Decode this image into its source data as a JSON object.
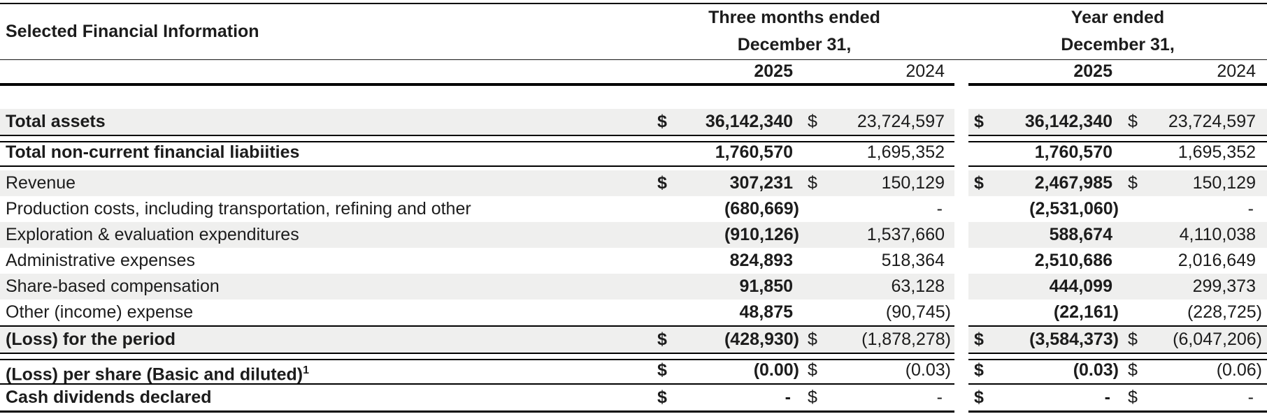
{
  "table": {
    "title": "Selected Financial Information",
    "col_groups": [
      {
        "period_line1": "Three months ended",
        "period_line2": "December 31,",
        "years": [
          "2025",
          "2024"
        ]
      },
      {
        "period_line1": "Year ended",
        "period_line2": "December 31,",
        "years": [
          "2025",
          "2024"
        ]
      }
    ],
    "shading_color": "#efefee",
    "rows": [
      {
        "label": "Total assets",
        "bold_label": true,
        "shaded": true,
        "rule_below": "double",
        "cells": [
          {
            "cur": "$",
            "val": "36,142,340"
          },
          {
            "cur": "$",
            "val": "23,724,597"
          },
          {
            "cur": "$",
            "val": "36,142,340"
          },
          {
            "cur": "$",
            "val": "23,724,597"
          }
        ]
      },
      {
        "label": "Total non-current financial liabiities",
        "bold_label": true,
        "shaded": false,
        "rule_below": "double",
        "cells": [
          {
            "cur": "",
            "val": "1,760,570"
          },
          {
            "cur": "",
            "val": "1,695,352"
          },
          {
            "cur": "",
            "val": "1,760,570"
          },
          {
            "cur": "",
            "val": "1,695,352"
          }
        ]
      },
      {
        "label": "Revenue",
        "bold_label": false,
        "shaded": true,
        "rule_below": null,
        "cells": [
          {
            "cur": "$",
            "val": "307,231"
          },
          {
            "cur": "$",
            "val": "150,129"
          },
          {
            "cur": "$",
            "val": "2,467,985"
          },
          {
            "cur": "$",
            "val": "150,129"
          }
        ]
      },
      {
        "label": "Production costs, including transportation, refining and other",
        "bold_label": false,
        "shaded": false,
        "rule_below": null,
        "cells": [
          {
            "cur": "",
            "val": "(680,669)"
          },
          {
            "cur": "",
            "val": "-"
          },
          {
            "cur": "",
            "val": "(2,531,060)"
          },
          {
            "cur": "",
            "val": "-"
          }
        ]
      },
      {
        "label": "Exploration & evaluation expenditures",
        "bold_label": false,
        "shaded": true,
        "rule_below": null,
        "cells": [
          {
            "cur": "",
            "val": "(910,126)"
          },
          {
            "cur": "",
            "val": "1,537,660"
          },
          {
            "cur": "",
            "val": "588,674"
          },
          {
            "cur": "",
            "val": "4,110,038"
          }
        ]
      },
      {
        "label": "Administrative expenses",
        "bold_label": false,
        "shaded": false,
        "rule_below": null,
        "cells": [
          {
            "cur": "",
            "val": "824,893"
          },
          {
            "cur": "",
            "val": "518,364"
          },
          {
            "cur": "",
            "val": "2,510,686"
          },
          {
            "cur": "",
            "val": "2,016,649"
          }
        ]
      },
      {
        "label": "Share-based compensation",
        "bold_label": false,
        "shaded": true,
        "rule_below": null,
        "cells": [
          {
            "cur": "",
            "val": "91,850"
          },
          {
            "cur": "",
            "val": "63,128"
          },
          {
            "cur": "",
            "val": "444,099"
          },
          {
            "cur": "",
            "val": "299,373"
          }
        ]
      },
      {
        "label": "Other (income) expense",
        "bold_label": false,
        "shaded": false,
        "rule_below": "single",
        "cells": [
          {
            "cur": "",
            "val": "48,875"
          },
          {
            "cur": "",
            "val": "(90,745)"
          },
          {
            "cur": "",
            "val": "(22,161)"
          },
          {
            "cur": "",
            "val": "(228,725)"
          }
        ]
      },
      {
        "label": "(Loss) for the period",
        "bold_label": true,
        "shaded": true,
        "rule_below": "double",
        "cells": [
          {
            "cur": "$",
            "val": "(428,930)"
          },
          {
            "cur": "$",
            "val": "(1,878,278)"
          },
          {
            "cur": "$",
            "val": "(3,584,373)"
          },
          {
            "cur": "$",
            "val": "(6,047,206)"
          }
        ]
      },
      {
        "label": "(Loss) per share (Basic and diluted)",
        "label_sup": "1",
        "bold_label": true,
        "shaded": false,
        "rule_below": "single",
        "cells": [
          {
            "cur": "$",
            "val": "(0.00)"
          },
          {
            "cur": "$",
            "val": "(0.03)"
          },
          {
            "cur": "$",
            "val": "(0.03)"
          },
          {
            "cur": "$",
            "val": "(0.06)"
          }
        ]
      },
      {
        "label": "Cash dividends declared",
        "bold_label": true,
        "shaded": false,
        "rule_below": "bottom",
        "cells": [
          {
            "cur": "$",
            "val": "-"
          },
          {
            "cur": "$",
            "val": "-"
          },
          {
            "cur": "$",
            "val": "-"
          },
          {
            "cur": "$",
            "val": "-"
          }
        ]
      }
    ]
  }
}
